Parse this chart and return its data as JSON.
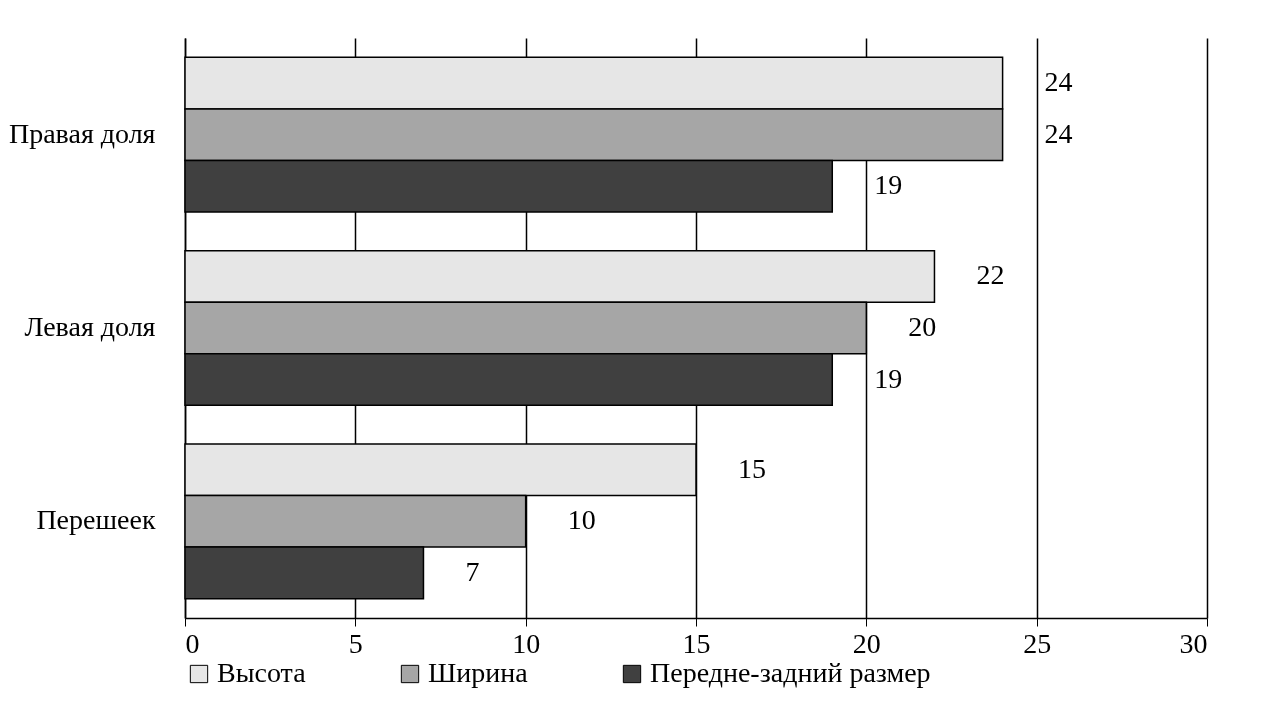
{
  "chart_data": {
    "type": "bar",
    "orientation": "horizontal",
    "categories": [
      "Правая доля",
      "Левая доля",
      "Перешеек"
    ],
    "series": [
      {
        "name": "Высота",
        "color": "#e6e6e6",
        "values": [
          24,
          22,
          15
        ]
      },
      {
        "name": "Ширина",
        "color": "#a6a6a6",
        "values": [
          24,
          20,
          10
        ]
      },
      {
        "name": "Передне-задний размер",
        "color": "#404040",
        "values": [
          19,
          19,
          7
        ]
      }
    ],
    "xlim": [
      0,
      30
    ],
    "xticks": [
      0,
      5,
      10,
      15,
      20,
      25,
      30
    ],
    "grid": "x",
    "legend": "bottom",
    "data_labels": true
  }
}
